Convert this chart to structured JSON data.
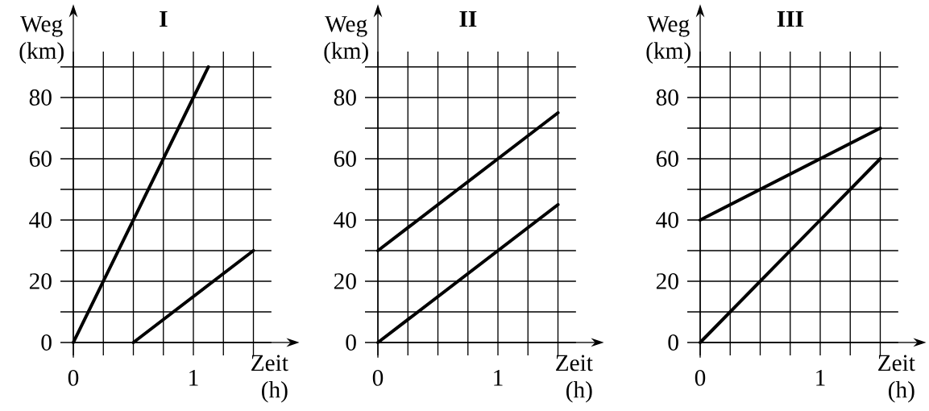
{
  "chart_data": [
    {
      "type": "line",
      "title": "I",
      "xlabel": "Zeit (h)",
      "ylabel": "Weg (km)",
      "xlim": [
        0,
        1.65
      ],
      "ylim": [
        0,
        95
      ],
      "grid": true,
      "line_style": "solid",
      "marker": "none",
      "xticks": [
        0,
        {
          "value": 0.25,
          "label": null
        },
        {
          "value": 0.5,
          "label": null
        },
        {
          "value": 0.75,
          "label": null
        },
        1,
        {
          "value": 1.25,
          "label": null
        },
        {
          "value": 1.5,
          "label": null
        }
      ],
      "yticks": [
        0,
        {
          "value": 10,
          "label": null
        },
        20,
        {
          "value": 30,
          "label": null
        },
        40,
        {
          "value": 50,
          "label": null
        },
        60,
        {
          "value": 70,
          "label": null
        },
        80,
        {
          "value": 90,
          "label": null
        }
      ],
      "series": [
        {
          "color": "#000000",
          "x": [
            0,
            1.125
          ],
          "values": [
            0,
            90
          ]
        },
        {
          "color": "#000000",
          "x": [
            0.5,
            1.5
          ],
          "values": [
            0,
            30
          ]
        }
      ]
    },
    {
      "type": "line",
      "title": "II",
      "xlabel": "Zeit (h)",
      "ylabel": "Weg (km)",
      "xlim": [
        0,
        1.65
      ],
      "ylim": [
        0,
        95
      ],
      "grid": true,
      "line_style": "solid",
      "marker": "none",
      "xticks": [
        0,
        {
          "value": 0.25,
          "label": null
        },
        {
          "value": 0.5,
          "label": null
        },
        {
          "value": 0.75,
          "label": null
        },
        1,
        {
          "value": 1.25,
          "label": null
        },
        {
          "value": 1.5,
          "label": null
        }
      ],
      "yticks": [
        0,
        {
          "value": 10,
          "label": null
        },
        20,
        {
          "value": 30,
          "label": null
        },
        40,
        {
          "value": 50,
          "label": null
        },
        60,
        {
          "value": 70,
          "label": null
        },
        80,
        {
          "value": 90,
          "label": null
        }
      ],
      "series": [
        {
          "color": "#000000",
          "x": [
            0,
            1.5
          ],
          "values": [
            30,
            75
          ]
        },
        {
          "color": "#000000",
          "x": [
            0,
            1.5
          ],
          "values": [
            0,
            45
          ]
        }
      ]
    },
    {
      "type": "line",
      "title": "III",
      "xlabel": "Zeit (h)",
      "ylabel": "Weg (km)",
      "xlim": [
        0,
        1.65
      ],
      "ylim": [
        0,
        95
      ],
      "grid": true,
      "line_style": "solid",
      "marker": "none",
      "xticks": [
        0,
        {
          "value": 0.25,
          "label": null
        },
        {
          "value": 0.5,
          "label": null
        },
        {
          "value": 0.75,
          "label": null
        },
        1,
        {
          "value": 1.25,
          "label": null
        },
        {
          "value": 1.5,
          "label": null
        }
      ],
      "yticks": [
        0,
        {
          "value": 10,
          "label": null
        },
        20,
        {
          "value": 30,
          "label": null
        },
        40,
        {
          "value": 50,
          "label": null
        },
        60,
        {
          "value": 70,
          "label": null
        },
        80,
        {
          "value": 90,
          "label": null
        }
      ],
      "series": [
        {
          "color": "#000000",
          "x": [
            0,
            1.5
          ],
          "values": [
            40,
            70
          ]
        },
        {
          "color": "#000000",
          "x": [
            0,
            1.5
          ],
          "values": [
            0,
            60
          ]
        }
      ]
    }
  ]
}
